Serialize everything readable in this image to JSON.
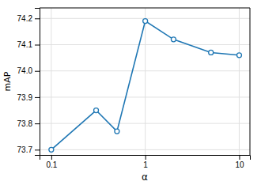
{
  "chart_data": {
    "type": "line",
    "xlabel": "α",
    "ylabel": "mAP",
    "x": [
      0.1,
      0.3,
      0.5,
      1,
      2,
      5,
      10
    ],
    "values": [
      73.7,
      73.85,
      73.77,
      74.19,
      74.12,
      74.07,
      74.06
    ],
    "color": "#1f77b4",
    "marker": "circle",
    "log": "x",
    "xlim": [
      0.075,
      13
    ],
    "ylim": [
      73.68,
      74.24
    ],
    "xticks": [
      0.1,
      1,
      10
    ],
    "yticks": [
      73.7,
      73.8,
      73.9,
      {
        "value": 74.0,
        "label": "74.0"
      },
      74.1,
      74.2
    ],
    "grid": true
  }
}
